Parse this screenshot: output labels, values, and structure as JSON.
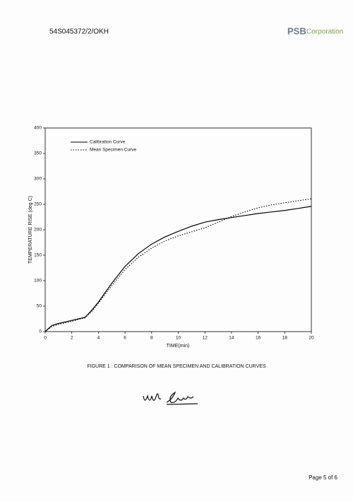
{
  "header": {
    "reference": "54S045372/2/OKH",
    "logo": {
      "primary": "PSB",
      "secondary": "Corporation"
    }
  },
  "chart_data": {
    "type": "line",
    "x_label": "TIME(min)",
    "y_label": "TEMPERATURE RISE (deg C)",
    "x": [
      0,
      0.5,
      1,
      2,
      2.5,
      3,
      3.5,
      4,
      5,
      6,
      7,
      8,
      9,
      10,
      11,
      12,
      13,
      14,
      15,
      16,
      17,
      18,
      19,
      20
    ],
    "series": [
      {
        "name": "Calibration Curve",
        "color": "#000000",
        "style": "solid",
        "values": [
          0,
          12,
          16,
          22,
          25,
          28,
          42,
          58,
          95,
          128,
          153,
          172,
          186,
          197,
          207,
          215,
          220,
          224,
          228,
          232,
          235,
          238,
          242,
          246
        ]
      },
      {
        "name": "Mean Specimen Curve",
        "color": "#000000",
        "style": "dotted",
        "values": [
          0,
          10,
          14,
          20,
          24,
          27,
          40,
          56,
          90,
          122,
          146,
          164,
          178,
          188,
          196,
          204,
          215,
          226,
          235,
          243,
          249,
          253,
          257,
          261
        ]
      }
    ],
    "xlim": [
      0,
      20
    ],
    "xticks": [
      0,
      2,
      4,
      6,
      8,
      10,
      12,
      14,
      16,
      18,
      20
    ],
    "ylim": [
      0,
      400
    ],
    "yticks": [
      0,
      50,
      100,
      150,
      200,
      250,
      300,
      350,
      400
    ],
    "legend": "upper-left"
  },
  "caption": "FIGURE 1 : COMPARISON OF MEAN SPECIMEN AND CALIBRATION CURVES",
  "footer": {
    "page": "Page 5 of 6"
  }
}
